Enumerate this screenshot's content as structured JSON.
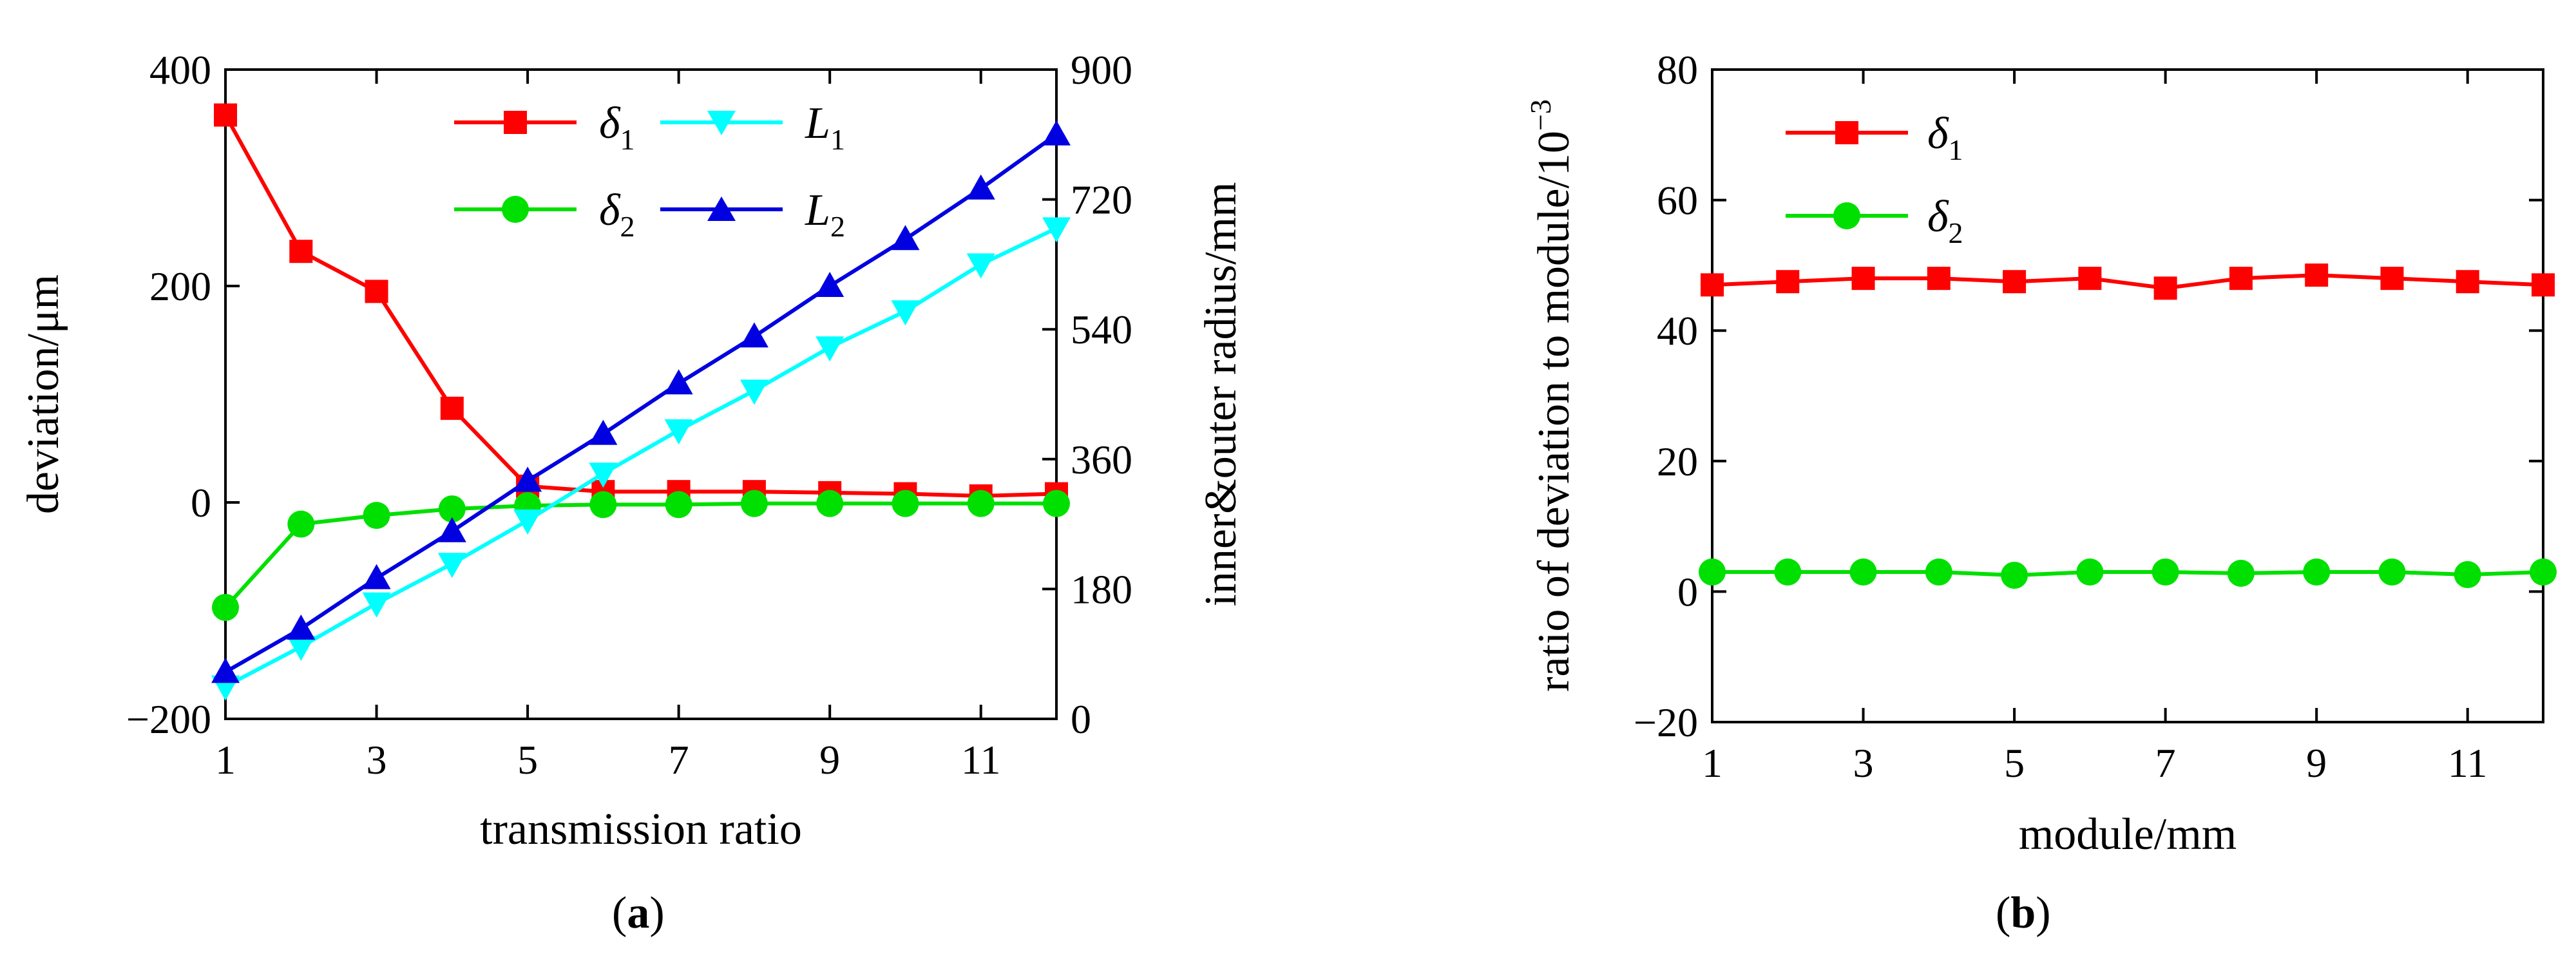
{
  "colors": {
    "delta1": "#ff0000",
    "delta2": "#00e000",
    "L1": "#00ffff",
    "L2": "#0000e0",
    "axis": "#000000"
  },
  "chart_data": [
    {
      "id": "a",
      "type": "line",
      "caption_open": "(",
      "caption_letter": "a",
      "caption_close": ")",
      "xlabel": "transmission ratio",
      "ylabel_left": "deviation/μm",
      "ylabel_right": "inner&outer radius/mm",
      "x": [
        1,
        2,
        3,
        4,
        5,
        6,
        7,
        8,
        9,
        10,
        11,
        12
      ],
      "xlim": [
        1,
        12
      ],
      "xticks": [
        "1",
        "3",
        "5",
        "7",
        "9",
        "11"
      ],
      "xtick_values": [
        1,
        3,
        5,
        7,
        9,
        11
      ],
      "ylim_left": [
        -200,
        400
      ],
      "yticks_left": [
        "−200",
        "0",
        "200",
        "400"
      ],
      "ytick_values_left": [
        -200,
        0,
        200,
        400
      ],
      "ylim_right": [
        0,
        900
      ],
      "yticks_right": [
        "0",
        "180",
        "360",
        "540",
        "720",
        "900"
      ],
      "ytick_values_right": [
        0,
        180,
        360,
        540,
        720,
        900
      ],
      "series": [
        {
          "key": "delta1",
          "symbol": "δ",
          "sub": "1",
          "axis": "left",
          "marker": "square",
          "color": "#ff0000",
          "values": [
            358,
            232,
            195,
            87,
            15,
            10,
            10,
            10,
            9,
            8,
            6,
            8
          ]
        },
        {
          "key": "delta2",
          "symbol": "δ",
          "sub": "2",
          "axis": "left",
          "marker": "circle",
          "color": "#00e000",
          "values": [
            -97,
            -20,
            -12,
            -6,
            -3,
            -2,
            -2,
            -1,
            -1,
            -1,
            -1,
            -1
          ]
        },
        {
          "key": "L1",
          "symbol": "L",
          "sub": "1",
          "axis": "right",
          "marker": "triangle-down",
          "color": "#00ffff",
          "values": [
            45,
            100,
            160,
            215,
            275,
            340,
            400,
            455,
            515,
            565,
            630,
            680
          ]
        },
        {
          "key": "L2",
          "symbol": "L",
          "sub": "2",
          "axis": "right",
          "marker": "triangle-up",
          "color": "#0000e0",
          "values": [
            65,
            125,
            195,
            260,
            330,
            395,
            465,
            530,
            600,
            665,
            735,
            810
          ]
        }
      ],
      "legend_position": "top-center"
    },
    {
      "id": "b",
      "type": "line",
      "caption_open": "(",
      "caption_letter": "b",
      "caption_close": ")",
      "xlabel": "module/mm",
      "ylabel": "ratio of deviation to module/10",
      "ylabel_exp": "−3",
      "x": [
        1,
        2,
        3,
        4,
        5,
        6,
        7,
        8,
        9,
        10,
        11,
        12
      ],
      "xlim": [
        1,
        12
      ],
      "xticks": [
        "1",
        "3",
        "5",
        "7",
        "9",
        "11"
      ],
      "xtick_values": [
        1,
        3,
        5,
        7,
        9,
        11
      ],
      "ylim": [
        -20,
        80
      ],
      "yticks": [
        "−20",
        "0",
        "20",
        "40",
        "60",
        "80"
      ],
      "ytick_values": [
        -20,
        0,
        20,
        40,
        60,
        80
      ],
      "series": [
        {
          "key": "delta1",
          "symbol": "δ",
          "sub": "1",
          "marker": "square",
          "color": "#ff0000",
          "values": [
            47,
            47.5,
            48,
            48,
            47.5,
            48,
            46.5,
            48,
            48.5,
            48,
            47.5,
            47
          ]
        },
        {
          "key": "delta2",
          "symbol": "δ",
          "sub": "2",
          "marker": "circle",
          "color": "#00e000",
          "values": [
            3,
            3,
            3,
            3,
            2.5,
            3,
            3,
            2.8,
            3,
            3,
            2.6,
            3
          ]
        }
      ],
      "legend_position": "top-left"
    }
  ]
}
